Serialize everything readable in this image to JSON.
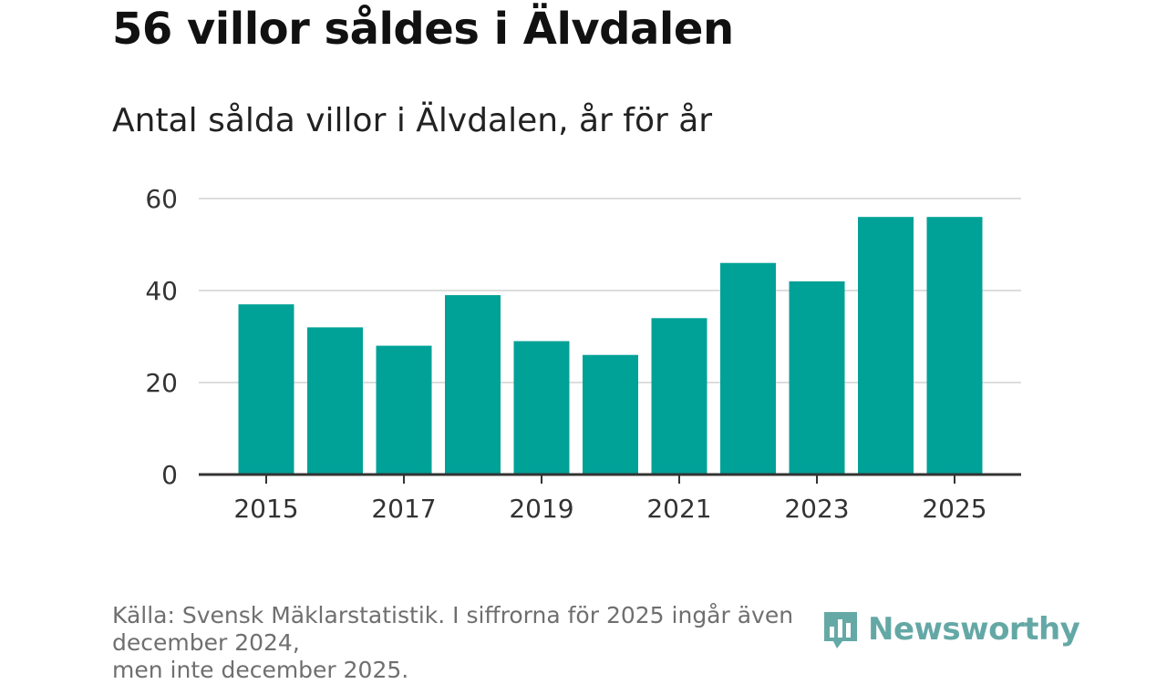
{
  "header": {
    "title": "56 villor såldes i Älvdalen",
    "subtitle": "Antal sålda villor i Älvdalen, år för år"
  },
  "chart_data": {
    "type": "bar",
    "categories": [
      "2015",
      "2016",
      "2017",
      "2018",
      "2019",
      "2020",
      "2021",
      "2022",
      "2023",
      "2024",
      "2025"
    ],
    "values": [
      37,
      32,
      28,
      39,
      29,
      26,
      34,
      46,
      42,
      56,
      56
    ],
    "x_tick_labels": [
      "2015",
      "2017",
      "2019",
      "2021",
      "2023",
      "2025"
    ],
    "y_ticks": [
      0,
      20,
      40,
      60
    ],
    "ylim": [
      0,
      60
    ],
    "xlabel": "",
    "ylabel": "",
    "grid": true,
    "bar_color": "#00a197",
    "grid_color": "#dddddd",
    "axis_color": "#333333"
  },
  "footer": {
    "source_line1": "Källa: Svensk Mäklarstatistik. I siffrorna för 2025 ingår även december 2024,",
    "source_line2": "men inte december 2025.",
    "logo_text": "Newsworthy",
    "logo_icon": "bar-chart-logo-icon"
  }
}
